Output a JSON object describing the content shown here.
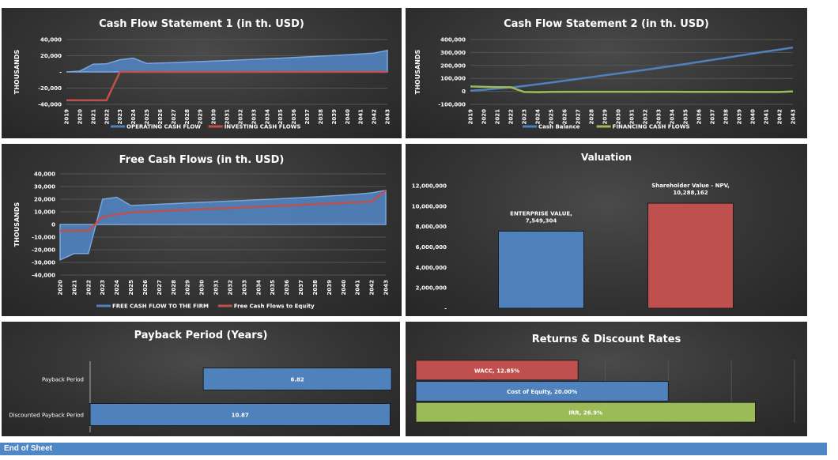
{
  "chart_data": [
    {
      "type": "area",
      "title": "Cash Flow Statement 1 (in th. USD)",
      "ylabel": "THOUSANDS",
      "ylim": [
        -40000,
        40000
      ],
      "yticks": [
        40000,
        20000,
        0,
        -20000,
        -40000
      ],
      "ytick_labels": [
        "40,000",
        "20,000",
        "-",
        "-20,000",
        "-40,000"
      ],
      "legend": "bottom",
      "x": [
        "2019",
        "2020",
        "2021",
        "2022",
        "2023",
        "2024",
        "2025",
        "2026",
        "2027",
        "2028",
        "2029",
        "2030",
        "2031",
        "2032",
        "2033",
        "2034",
        "2035",
        "2036",
        "2037",
        "2038",
        "2039",
        "2040",
        "2041",
        "2042",
        "2043"
      ],
      "series": [
        {
          "name": "OPERATING CASH FLOW",
          "kind": "area",
          "color": "#4f81bd",
          "values": [
            0,
            1000,
            9500,
            10000,
            15000,
            17000,
            10500,
            11000,
            11500,
            12200,
            12800,
            13400,
            14000,
            14800,
            15500,
            16200,
            17000,
            17800,
            18600,
            19500,
            20300,
            21200,
            22200,
            23300,
            26500
          ]
        },
        {
          "name": "INVESTING CASH FLOWS",
          "kind": "line",
          "color": "#c0504d",
          "values": [
            -35000,
            -35000,
            -35000,
            -35000,
            0,
            0,
            0,
            0,
            0,
            0,
            0,
            0,
            0,
            0,
            0,
            0,
            0,
            0,
            0,
            0,
            0,
            0,
            0,
            0,
            0
          ]
        }
      ]
    },
    {
      "type": "line",
      "title": "Cash Flow Statement 2 (in th. USD)",
      "ylabel": "THOUSANDS",
      "ylim": [
        -100000,
        400000
      ],
      "yticks": [
        400000,
        300000,
        200000,
        100000,
        0,
        -100000
      ],
      "ytick_labels": [
        "400,000",
        "300,000",
        "200,000",
        "100,000",
        "0",
        "-100,000"
      ],
      "legend": "bottom",
      "x": [
        "2019",
        "2020",
        "2021",
        "2022",
        "2023",
        "2024",
        "2025",
        "2026",
        "2027",
        "2028",
        "2029",
        "2030",
        "2031",
        "2032",
        "2033",
        "2034",
        "2035",
        "2036",
        "2037",
        "2038",
        "2039",
        "2040",
        "2041",
        "2042",
        "2043"
      ],
      "series": [
        {
          "name": "Cash Balance",
          "kind": "line",
          "color": "#4f81bd",
          "values": [
            5000,
            12000,
            22000,
            30000,
            42000,
            55000,
            68000,
            82000,
            96000,
            110000,
            124000,
            138000,
            152000,
            166000,
            181000,
            196000,
            211000,
            227000,
            243000,
            259000,
            275000,
            292000,
            308000,
            322000,
            338000
          ]
        },
        {
          "name": "FINANCING CASH FLOWS",
          "kind": "line",
          "color": "#9bbb59",
          "values": [
            38000,
            35000,
            33000,
            32000,
            -5000,
            -6000,
            -4000,
            -3000,
            -3000,
            -3000,
            -3000,
            -3000,
            -3000,
            -3000,
            -3000,
            -3000,
            -4000,
            -4000,
            -4000,
            -4000,
            -4000,
            -5000,
            -5000,
            -5000,
            0
          ]
        }
      ]
    },
    {
      "type": "area",
      "title": "Free Cash Flows (in th. USD)",
      "ylabel": "THOUSANDS",
      "ylim": [
        -40000,
        40000
      ],
      "yticks": [
        40000,
        30000,
        20000,
        10000,
        0,
        -10000,
        -20000,
        -30000,
        -40000
      ],
      "ytick_labels": [
        "40,000",
        "30,000",
        "20,000",
        "10,000",
        "0",
        "-10,000",
        "-20,000",
        "-30,000",
        "-40,000"
      ],
      "legend": "bottom",
      "x": [
        "2020",
        "2021",
        "2022",
        "2023",
        "2024",
        "2025",
        "2026",
        "2027",
        "2028",
        "2029",
        "2030",
        "2031",
        "2032",
        "2033",
        "2034",
        "2035",
        "2036",
        "2037",
        "2038",
        "2039",
        "2040",
        "2041",
        "2042",
        "2043"
      ],
      "series": [
        {
          "name": "FREE CASH FLOW TO THE FIRM",
          "kind": "area",
          "color": "#4f81bd",
          "values": [
            -28000,
            -23000,
            -23000,
            20000,
            21500,
            15000,
            15500,
            16000,
            16500,
            17000,
            17500,
            18000,
            18500,
            19000,
            19500,
            20000,
            20600,
            21200,
            21800,
            22500,
            23200,
            24000,
            25000,
            27000
          ]
        },
        {
          "name": "Free Cash Flows to Equity",
          "kind": "line",
          "color": "#c0504d",
          "values": [
            -5000,
            -5000,
            -5000,
            6000,
            8000,
            9500,
            10000,
            10500,
            11000,
            11500,
            12000,
            12500,
            13000,
            13500,
            14000,
            14500,
            15000,
            15500,
            16000,
            16500,
            17000,
            17500,
            18000,
            27000
          ]
        }
      ]
    },
    {
      "type": "bar",
      "title": "Valuation",
      "ylim": [
        0,
        12000000
      ],
      "yticks": [
        12000000,
        10000000,
        8000000,
        6000000,
        4000000,
        2000000,
        0
      ],
      "ytick_labels": [
        "12,000,000",
        "10,000,000",
        "8,000,000",
        "6,000,000",
        "4,000,000",
        "2,000,000",
        "-"
      ],
      "categories": [
        "ENTERPRISE VALUE",
        "Shareholder Value - NPV"
      ],
      "values": [
        7549304,
        10288162
      ],
      "colors": [
        "#4f81bd",
        "#c0504d"
      ],
      "data_labels": [
        [
          "ENTERPRISE VALUE,",
          "7,549,304"
        ],
        [
          "Shareholder Value - NPV,",
          "10,288,162"
        ]
      ]
    },
    {
      "type": "bar",
      "orientation": "horizontal",
      "title": "Payback Period (Years)",
      "categories": [
        "Payback Period",
        "Discounted Payback Period"
      ],
      "values": [
        6.82,
        10.87
      ],
      "starts": [
        4.1,
        0
      ],
      "xlim": [
        0,
        11.0
      ],
      "data_labels": [
        "6.82",
        "10.87"
      ],
      "color": "#4f81bd"
    },
    {
      "type": "bar",
      "orientation": "horizontal",
      "title": "Returns & Discount Rates",
      "categories": [
        "WACC",
        "Cost of Equity",
        "IRR"
      ],
      "values": [
        12.85,
        20.0,
        26.9
      ],
      "xlim": [
        0,
        30
      ],
      "colors": [
        "#c0504d",
        "#4f81bd",
        "#9bbb59"
      ],
      "data_labels": [
        "WACC, 12.85%",
        "Cost of Equity, 20.00%",
        "IRR, 26.9%"
      ]
    }
  ],
  "footer": {
    "label": "End of Sheet"
  }
}
